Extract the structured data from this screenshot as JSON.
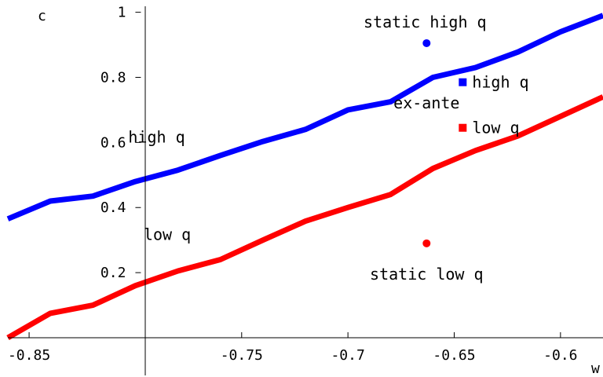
{
  "chart_data": {
    "type": "line",
    "title": "",
    "xlabel": "w",
    "ylabel": "c",
    "xlim": [
      -0.86,
      -0.58
    ],
    "ylim": [
      0,
      1
    ],
    "x_ticks": [
      -0.85,
      -0.75,
      -0.7,
      -0.65,
      -0.6
    ],
    "x_tick_labels": [
      "-0.85",
      "-0.75",
      "-0.7",
      "-0.65",
      "-0.6"
    ],
    "y_ticks": [
      0.2,
      0.4,
      0.6,
      0.8,
      1
    ],
    "y_tick_labels": [
      "0.2",
      "0.4",
      "0.6",
      "0.8",
      "1"
    ],
    "grid": false,
    "series": [
      {
        "name": "high q",
        "color": "#0000ff",
        "x": [
          -0.86,
          -0.84,
          -0.82,
          -0.8,
          -0.78,
          -0.76,
          -0.74,
          -0.72,
          -0.7,
          -0.68,
          -0.66,
          -0.64,
          -0.62,
          -0.6,
          -0.58
        ],
        "y": [
          0.365,
          0.42,
          0.435,
          0.48,
          0.515,
          0.56,
          0.603,
          0.64,
          0.7,
          0.725,
          0.8,
          0.83,
          0.878,
          0.94,
          0.99
        ]
      },
      {
        "name": "low q",
        "color": "#ff0000",
        "x": [
          -0.86,
          -0.84,
          -0.82,
          -0.8,
          -0.78,
          -0.76,
          -0.74,
          -0.72,
          -0.7,
          -0.68,
          -0.66,
          -0.64,
          -0.62,
          -0.6,
          -0.58
        ],
        "y": [
          0.0,
          0.075,
          0.1,
          0.16,
          0.205,
          0.24,
          0.3,
          0.358,
          0.4,
          0.44,
          0.52,
          0.575,
          0.62,
          0.68,
          0.74
        ]
      }
    ],
    "points": [
      {
        "label": "static high q",
        "x": -0.663,
        "y": 0.905,
        "marker": "circle",
        "color": "#0000ff"
      },
      {
        "label": "high q",
        "x": -0.646,
        "y": 0.785,
        "marker": "square",
        "color": "#0000ff"
      },
      {
        "label": "low q",
        "x": -0.646,
        "y": 0.645,
        "marker": "square",
        "color": "#ff0000"
      },
      {
        "label": "static low q",
        "x": -0.663,
        "y": 0.29,
        "marker": "circle",
        "color": "#ff0000"
      }
    ],
    "annotations": [
      {
        "text": "ex-ante",
        "x": -0.663,
        "y": 0.705
      },
      {
        "text": "high q",
        "x": -0.79,
        "y": 0.6
      },
      {
        "text": "low q",
        "x": -0.785,
        "y": 0.3
      }
    ]
  }
}
